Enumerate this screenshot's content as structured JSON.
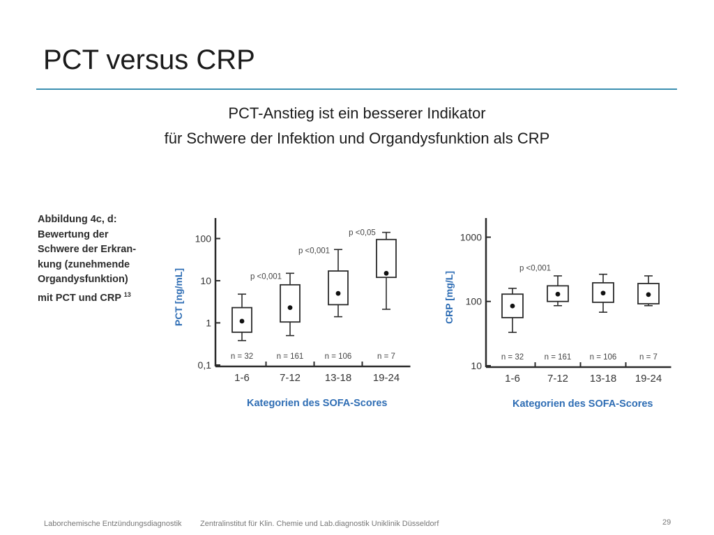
{
  "slide": {
    "title": "PCT versus CRP",
    "subtitle_line1": "PCT-Anstieg ist ein besserer Indikator",
    "subtitle_line2": "für Schwere der Infektion und Organdysfunktion als CRP"
  },
  "figure": {
    "caption_lines": [
      "Abbildung 4c, d:",
      "Bewertung der",
      "Schwere der Erkran-",
      "kung (zunehmende",
      "Organdysfunktion)",
      "mit PCT und CRP"
    ],
    "caption_ref": "13"
  },
  "footer": {
    "left": "Laborchemische Entzündungsdiagnostik",
    "middle": "Zentralinstitut für Klin. Chemie und Lab.diagnostik Uniklinik Düsseldorf",
    "page": "29"
  },
  "colors": {
    "accent": "#3a8fb0",
    "axis_label": "#2e6db4",
    "box": "#2a2a2a"
  },
  "chart_data": [
    {
      "type": "box",
      "ylabel": "PCT [ng/mL]",
      "xlabel": "Kategorien des SOFA-Scores",
      "yscale": "log",
      "ylim": [
        0.1,
        180
      ],
      "yticks": [
        0.1,
        1,
        10,
        100
      ],
      "ytick_labels": [
        "0,1",
        "1",
        "10",
        "100"
      ],
      "categories": [
        "1-6",
        "7-12",
        "13-18",
        "19-24"
      ],
      "n_labels": [
        "n = 32",
        "n = 161",
        "n = 106",
        "n = 7"
      ],
      "boxes": [
        {
          "whisker_low": 0.38,
          "q1": 0.6,
          "median": 1.1,
          "q3": 2.3,
          "whisker_high": 4.8
        },
        {
          "whisker_low": 0.5,
          "q1": 1.05,
          "median": 2.3,
          "q3": 8,
          "whisker_high": 15
        },
        {
          "whisker_low": 1.4,
          "q1": 2.7,
          "median": 5,
          "q3": 17,
          "whisker_high": 55
        },
        {
          "whisker_low": 2.1,
          "q1": 12,
          "median": 15,
          "q3": 95,
          "whisker_high": 140
        }
      ],
      "annotations": [
        {
          "text": "p <0,001",
          "between": [
            0,
            1
          ],
          "y": 11
        },
        {
          "text": "p <0,001",
          "between": [
            1,
            2
          ],
          "y": 45
        },
        {
          "text": "p <0,05",
          "between": [
            2,
            3
          ],
          "y": 120
        }
      ]
    },
    {
      "type": "box",
      "ylabel": "CRP [mg/L]",
      "xlabel": "Kategorien des SOFA-Scores",
      "yscale": "log",
      "ylim": [
        10,
        1400
      ],
      "yticks": [
        10,
        100,
        1000
      ],
      "ytick_labels": [
        "10",
        "100",
        "1000"
      ],
      "categories": [
        "1-6",
        "7-12",
        "13-18",
        "19-24"
      ],
      "n_labels": [
        "n = 32",
        "n = 161",
        "n = 106",
        "n = 7"
      ],
      "boxes": [
        {
          "whisker_low": 33,
          "q1": 56,
          "median": 85,
          "q3": 130,
          "whisker_high": 160
        },
        {
          "whisker_low": 86,
          "q1": 100,
          "median": 130,
          "q3": 175,
          "whisker_high": 250
        },
        {
          "whisker_low": 68,
          "q1": 97,
          "median": 135,
          "q3": 195,
          "whisker_high": 265
        },
        {
          "whisker_low": 86,
          "q1": 92,
          "median": 128,
          "q3": 190,
          "whisker_high": 250
        }
      ],
      "annotations": [
        {
          "text": "p <0,001",
          "between": [
            0,
            1
          ],
          "y": 300
        }
      ]
    }
  ]
}
